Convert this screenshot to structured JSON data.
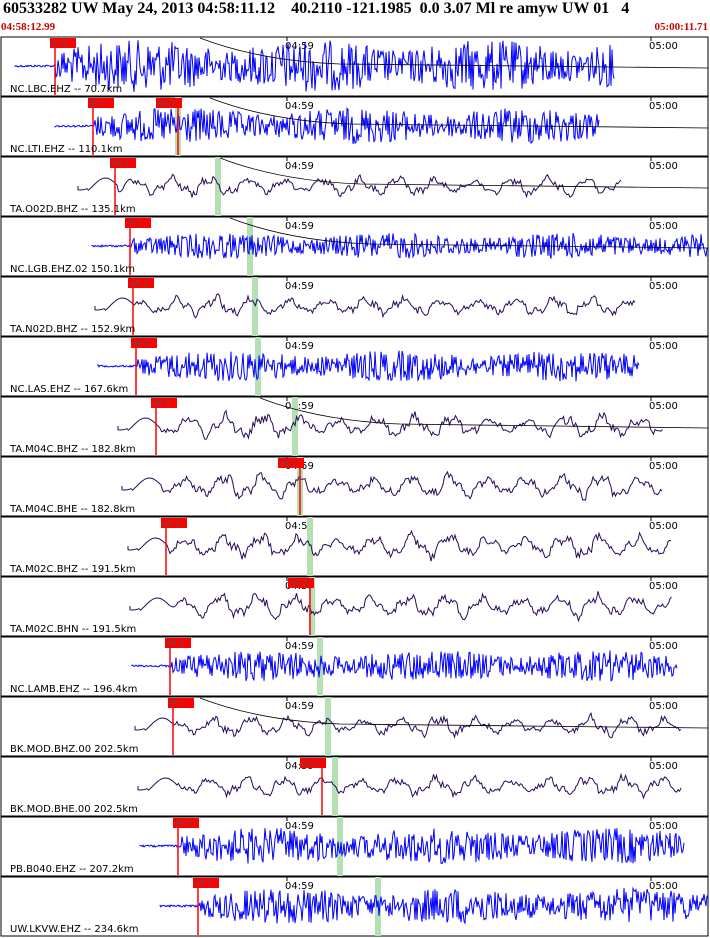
{
  "header": {
    "title": "60533282 UW May 24, 2013 04:58:11.12    40.2110 -121.1985  0.0 3.07 Ml re amyw UW 01   4",
    "start_time": "04:58:12.99",
    "end_time": "05:00:11.71"
  },
  "time_ticks": [
    "04:59",
    "05:00"
  ],
  "colors": {
    "short_period": "#0000ff",
    "broadband": "#2a0a5a",
    "pick": "#ff0000",
    "s_window": "#b4e0b4",
    "frame": "#000000"
  },
  "traces": [
    {
      "label": "NC.LBC.EHZ -- 70.7km",
      "kind": "sp",
      "p_pick": "iP:0",
      "s_pick": "",
      "amp": 1.0
    },
    {
      "label": "NC.LTI.EHZ -- 110.1km",
      "kind": "sp",
      "p_pick": "iP:1",
      "s_pick": "eS:2",
      "amp": 0.7
    },
    {
      "label": "TA.O02D.BHZ -- 135.1km",
      "kind": "bb",
      "p_pick": "eP:2",
      "s_pick": "",
      "amp": 0.5
    },
    {
      "label": "NC.LGB.EHZ.02 150.1km",
      "kind": "sp",
      "p_pick": "iP:1",
      "s_pick": "",
      "amp": 0.5
    },
    {
      "label": "TA.N02D.BHZ -- 152.9km",
      "kind": "bb",
      "p_pick": "eP:2",
      "s_pick": "",
      "amp": 0.5
    },
    {
      "label": "NC.LAS.EHZ -- 167.6km",
      "kind": "sp",
      "p_pick": "eP:2",
      "s_pick": "",
      "amp": 0.6
    },
    {
      "label": "TA.M04C.BHZ -- 182.8km",
      "kind": "bb",
      "p_pick": "eP:2",
      "s_pick": "",
      "amp": 0.6
    },
    {
      "label": "TA.M04C.BHE -- 182.8km",
      "kind": "bb",
      "p_pick": "",
      "s_pick": "eS:2",
      "amp": 0.6
    },
    {
      "label": "TA.M02C.BHZ -- 191.5km",
      "kind": "bb",
      "p_pick": "eP:2",
      "s_pick": "",
      "amp": 0.6
    },
    {
      "label": "TA.M02C.BHN -- 191.5km",
      "kind": "bb",
      "p_pick": "",
      "s_pick": "eS:2",
      "amp": 0.6
    },
    {
      "label": "NC.LAMB.EHZ -- 196.4km",
      "kind": "sp",
      "p_pick": "eP:2",
      "s_pick": "",
      "amp": 0.6
    },
    {
      "label": "BK.MOD.BHZ.00 202.5km",
      "kind": "bb",
      "p_pick": "iP:1",
      "s_pick": "",
      "amp": 0.5
    },
    {
      "label": "BK.MOD.BHE.00 202.5km",
      "kind": "bb",
      "p_pick": "",
      "s_pick": "eS:2",
      "amp": 0.5
    },
    {
      "label": "PB.B040.EHZ -- 207.2km",
      "kind": "sp",
      "p_pick": "eP:1",
      "s_pick": "",
      "amp": 0.7
    },
    {
      "label": "UW.LKVW.EHZ -- 234.6km",
      "kind": "sp",
      "p_pick": "eP:2",
      "s_pick": "",
      "amp": 0.7
    }
  ]
}
